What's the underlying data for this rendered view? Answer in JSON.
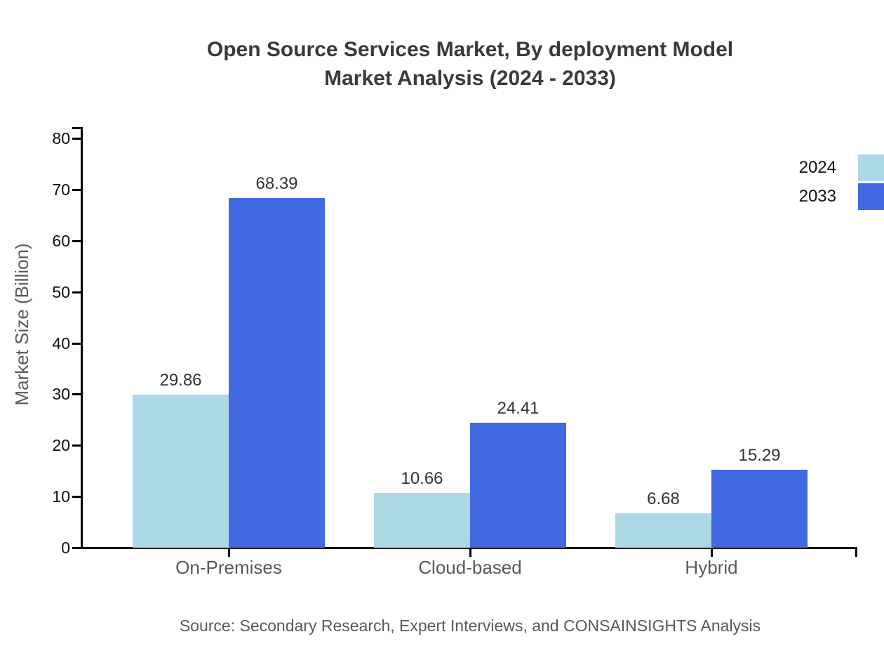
{
  "header": {
    "title_line1": "Open Source Services Market, By deployment Model",
    "title_line2": "Market Analysis (2024 - 2033)"
  },
  "footer": {
    "source": "Source: Secondary Research, Expert Interviews, and CONSAINSIGHTS Analysis"
  },
  "chart_data": {
    "type": "bar",
    "title": "Open Source Services Market, By deployment Model Market Analysis (2024 - 2033)",
    "categories": [
      "On-Premises",
      "Cloud-based",
      "Hybrid"
    ],
    "series": [
      {
        "name": "2024",
        "color": "#add8e6",
        "values": [
          29.86,
          10.66,
          6.68
        ]
      },
      {
        "name": "2033",
        "color": "#4169e1",
        "values": [
          68.39,
          24.41,
          15.29
        ]
      }
    ],
    "xlabel": "",
    "ylabel": "Market Size (Billion)",
    "ylim": [
      0,
      80
    ],
    "ytick_step": 10,
    "grid": false,
    "legend_position": "top-right",
    "value_labels": true,
    "axis_color": "#000000"
  }
}
